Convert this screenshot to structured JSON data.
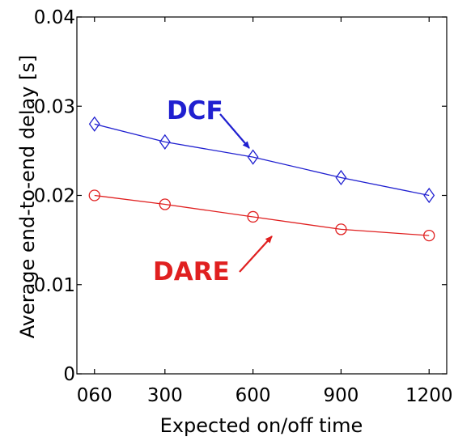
{
  "chart_data": {
    "type": "line",
    "title": "",
    "xlabel": "Expected on/off time",
    "ylabel": "Average end-to-end delay [s]",
    "categories": [
      "060",
      "300",
      "600",
      "900",
      "1200"
    ],
    "x": [
      60,
      300,
      600,
      900,
      1200
    ],
    "xlim": [
      0,
      1260
    ],
    "ylim": [
      0,
      0.04
    ],
    "x_ticks": [
      "060",
      "300",
      "600",
      "900",
      "1200"
    ],
    "y_ticks": [
      "0",
      "0.01",
      "0.02",
      "0.03",
      "0.04"
    ],
    "y_tick_values": [
      0,
      0.01,
      0.02,
      0.03,
      0.04
    ],
    "grid": false,
    "series": [
      {
        "name": "DCF",
        "values": [
          0.028,
          0.026,
          0.0243,
          0.022,
          0.02
        ],
        "color": "#2020d0",
        "marker": "diamond"
      },
      {
        "name": "DARE",
        "values": [
          0.02,
          0.019,
          0.0176,
          0.0162,
          0.0155
        ],
        "color": "#e02020",
        "marker": "circle"
      }
    ],
    "annotations": [
      {
        "text": "DCF",
        "series": "DCF",
        "color": "#2020d0"
      },
      {
        "text": "DARE",
        "series": "DARE",
        "color": "#e02020"
      }
    ]
  }
}
